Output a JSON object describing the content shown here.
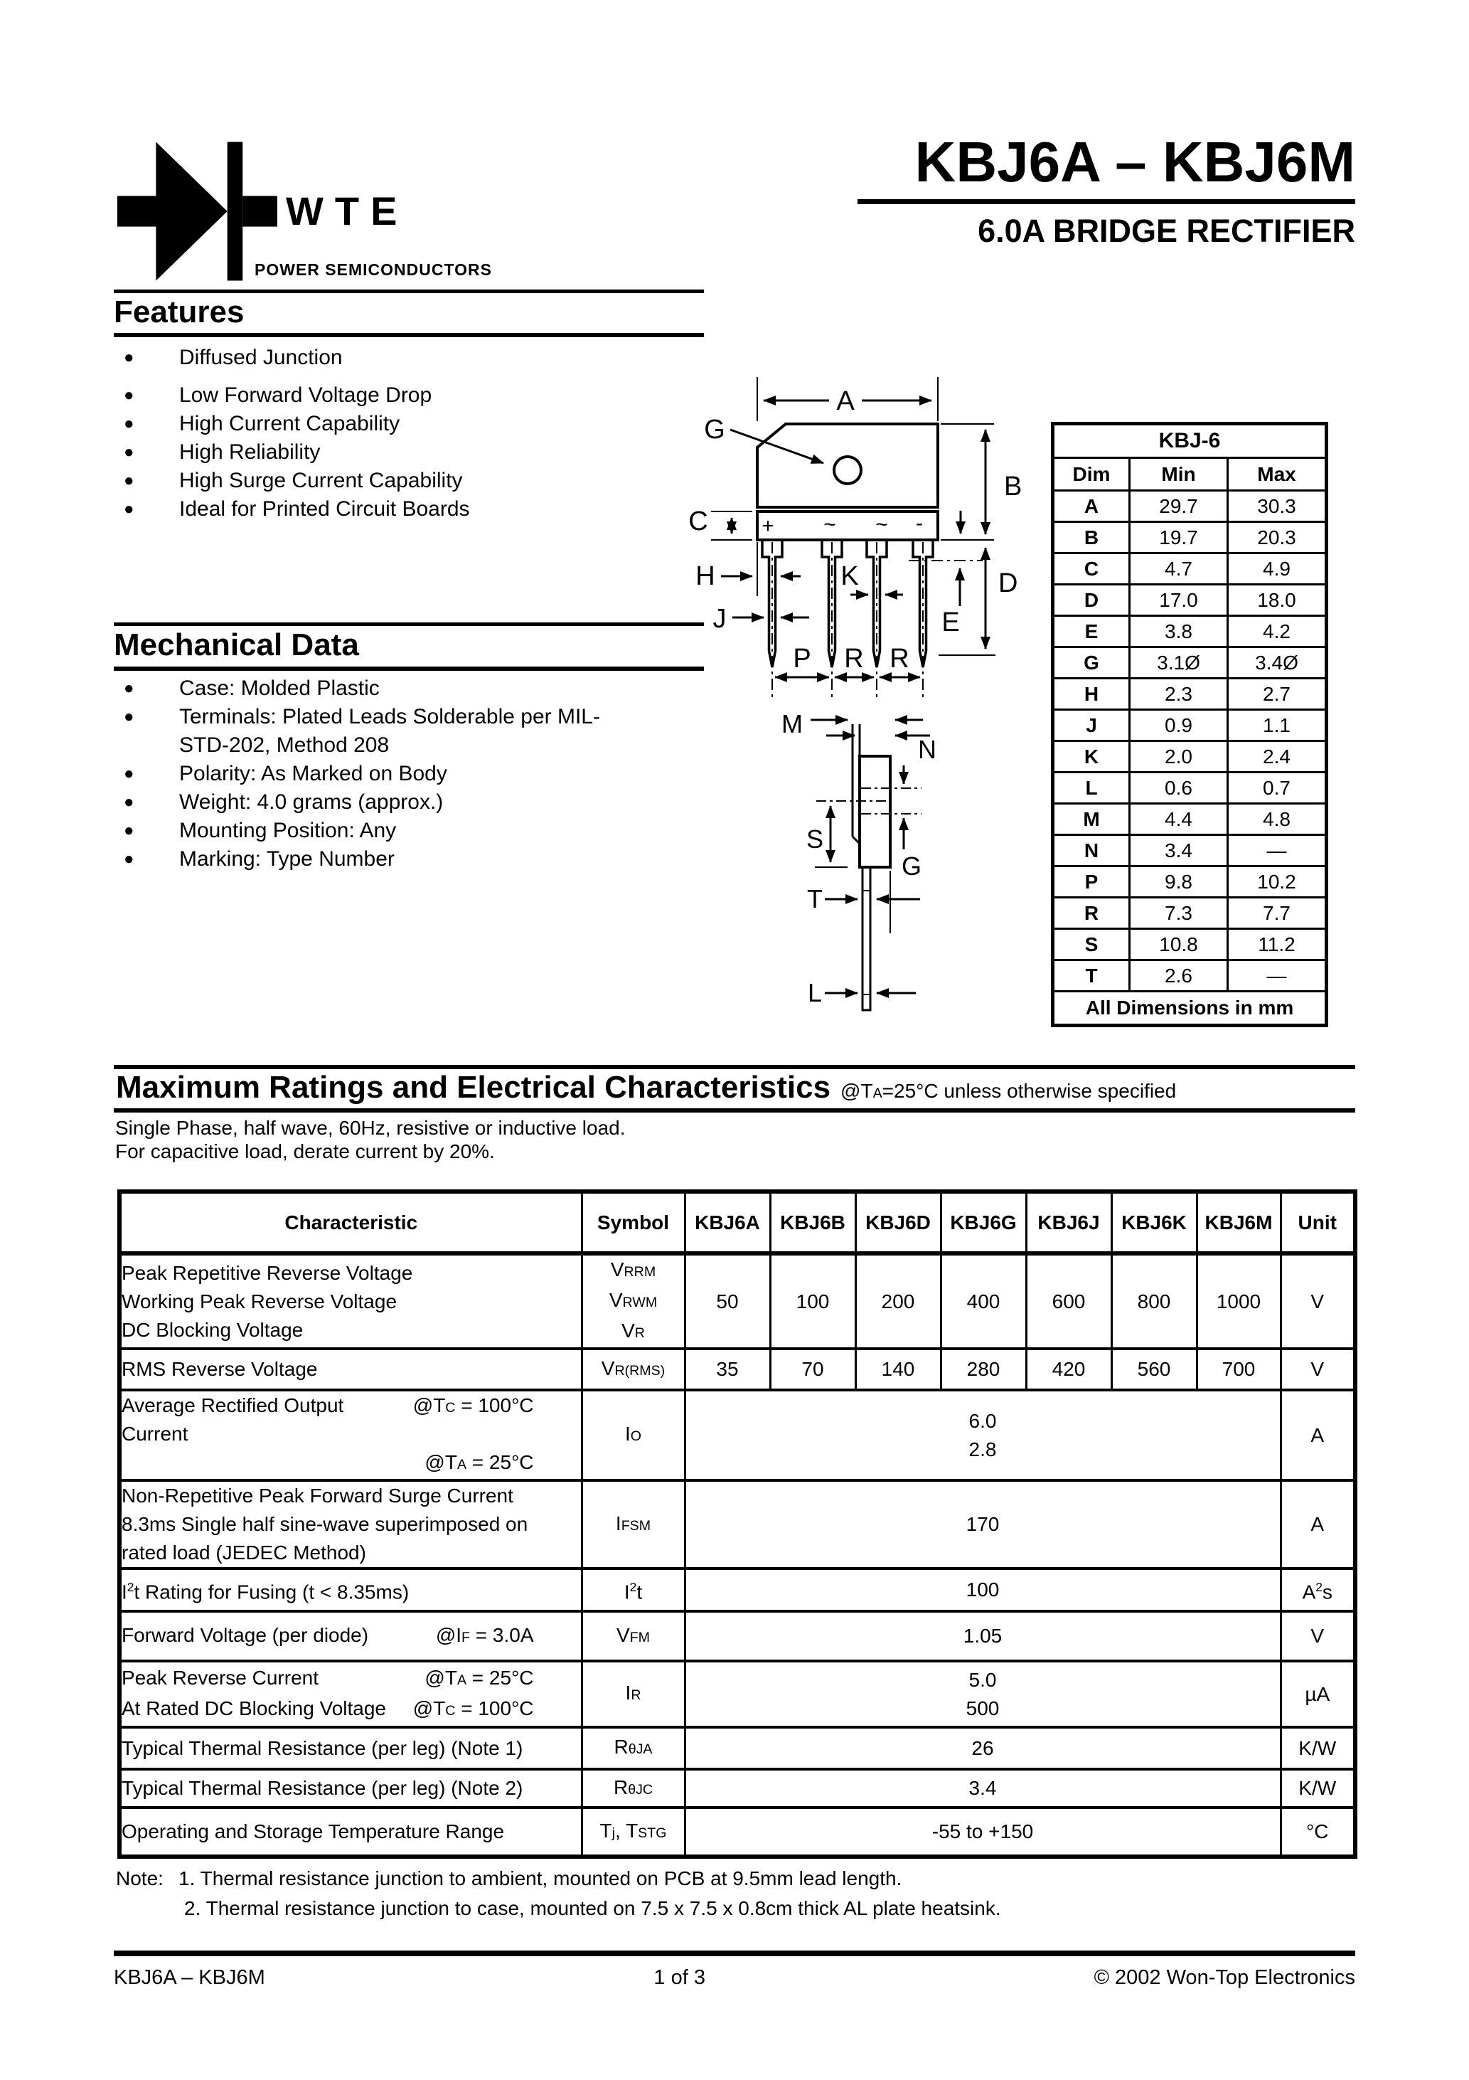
{
  "header": {
    "brand": "WTE",
    "brand_tagline": "POWER SEMICONDUCTORS",
    "title": "KBJ6A – KBJ6M",
    "subtitle": "6.0A BRIDGE RECTIFIER"
  },
  "features": {
    "heading": "Features",
    "items": [
      "Diffused Junction",
      "Low Forward Voltage Drop",
      "High Current Capability",
      "High Reliability",
      "High Surge Current Capability",
      "Ideal for Printed Circuit Boards"
    ]
  },
  "mechanical": {
    "heading": "Mechanical Data",
    "items": [
      "Case: Molded Plastic",
      "Terminals: Plated Leads Solderable per MIL-STD-202, Method 208",
      "Polarity: As Marked on Body",
      "Weight: 4.0 grams (approx.)",
      "Mounting Position: Any",
      "Marking: Type Number"
    ]
  },
  "package_diagram": {
    "front_labels": {
      "A": "A",
      "B": "B",
      "C": "C",
      "D": "D",
      "E": "E",
      "G": "G",
      "H": "H",
      "J": "J",
      "K": "K",
      "P": "P",
      "R1": "R",
      "R2": "R"
    },
    "side_labels": {
      "M": "M",
      "N": "N",
      "S": "S",
      "G": "G",
      "T": "T",
      "L": "L"
    },
    "polarity_marks": [
      "+",
      "~",
      "~",
      "-"
    ]
  },
  "dim_table": {
    "title": "KBJ-6",
    "columns": [
      "Dim",
      "Min",
      "Max"
    ],
    "rows": [
      [
        "A",
        "29.7",
        "30.3"
      ],
      [
        "B",
        "19.7",
        "20.3"
      ],
      [
        "C",
        "4.7",
        "4.9"
      ],
      [
        "D",
        "17.0",
        "18.0"
      ],
      [
        "E",
        "3.8",
        "4.2"
      ],
      [
        "G",
        "3.1Ø",
        "3.4Ø"
      ],
      [
        "H",
        "2.3",
        "2.7"
      ],
      [
        "J",
        "0.9",
        "1.1"
      ],
      [
        "K",
        "2.0",
        "2.4"
      ],
      [
        "L",
        "0.6",
        "0.7"
      ],
      [
        "M",
        "4.4",
        "4.8"
      ],
      [
        "N",
        "3.4",
        "—"
      ],
      [
        "P",
        "9.8",
        "10.2"
      ],
      [
        "R",
        "7.3",
        "7.7"
      ],
      [
        "S",
        "10.8",
        "11.2"
      ],
      [
        "T",
        "2.6",
        "—"
      ]
    ],
    "footer": "All Dimensions in mm"
  },
  "ratings": {
    "heading": "Maximum Ratings and Electrical Characteristics",
    "heading_note": "@T~A~=25°C unless otherwise specified",
    "conditions": [
      "Single Phase, half wave, 60Hz, resistive or inductive load.",
      "For capacitive load, derate current by 20%."
    ],
    "table": {
      "headers": [
        "Characteristic",
        "Symbol",
        "KBJ6A",
        "KBJ6B",
        "KBJ6D",
        "KBJ6G",
        "KBJ6J",
        "KBJ6K",
        "KBJ6M",
        "Unit"
      ],
      "rows": [
        {
          "characteristic": [
            {
              "l": "Peak Repetitive Reverse Voltage"
            },
            {
              "l": "Working Peak Reverse Voltage"
            },
            {
              "l": "DC Blocking Voltage"
            }
          ],
          "symbol": [
            "V~RRM~",
            "V~RWM~",
            "V~R~"
          ],
          "values": [
            "50",
            "100",
            "200",
            "400",
            "600",
            "800",
            "1000"
          ],
          "unit": "V"
        },
        {
          "characteristic": [
            {
              "l": "RMS Reverse Voltage"
            }
          ],
          "symbol": [
            "V~R(RMS)~"
          ],
          "values": [
            "35",
            "70",
            "140",
            "280",
            "420",
            "560",
            "700"
          ],
          "unit": "V"
        },
        {
          "characteristic": [
            {
              "l": "Average Rectified Output Current",
              "r": "@T~C~ = 100°C"
            },
            {
              "l": "",
              "r": "@T~A~ = 25°C"
            }
          ],
          "symbol": [
            "I~O~"
          ],
          "span": [
            "6.0",
            "2.8"
          ],
          "unit": "A"
        },
        {
          "characteristic": [
            {
              "l": "Non-Repetitive Peak Forward Surge Current"
            },
            {
              "l": "8.3ms Single half sine-wave superimposed on"
            },
            {
              "l": "rated load (JEDEC Method)"
            }
          ],
          "symbol": [
            "I~FSM~"
          ],
          "span": [
            "170"
          ],
          "unit": "A"
        },
        {
          "characteristic": [
            {
              "l": "I^2^t Rating for Fusing (t < 8.35ms)"
            }
          ],
          "symbol": [
            "I^2^t"
          ],
          "span": [
            "100"
          ],
          "unit": "A^2^s"
        },
        {
          "characteristic": [
            {
              "l": "Forward Voltage (per diode)",
              "r": "@I~F~ = 3.0A"
            }
          ],
          "symbol": [
            "V~FM~"
          ],
          "span": [
            "1.05"
          ],
          "unit": "V"
        },
        {
          "characteristic": [
            {
              "l": "Peak Reverse Current",
              "r": "@T~A~ = 25°C"
            },
            {
              "l": "At Rated DC Blocking Voltage",
              "r": "@T~C~ = 100°C"
            }
          ],
          "symbol": [
            "I~R~"
          ],
          "span": [
            "5.0",
            "500"
          ],
          "unit": "µA"
        },
        {
          "characteristic": [
            {
              "l": "Typical Thermal Resistance (per leg) (Note 1)"
            }
          ],
          "symbol": [
            "R~θJA~"
          ],
          "span": [
            "26"
          ],
          "unit": "K/W"
        },
        {
          "characteristic": [
            {
              "l": "Typical Thermal Resistance (per leg) (Note 2)"
            }
          ],
          "symbol": [
            "R~θJC~"
          ],
          "span": [
            "3.4"
          ],
          "unit": "K/W"
        },
        {
          "characteristic": [
            {
              "l": "Operating and Storage Temperature Range"
            }
          ],
          "symbol": [
            "T~j~, T~STG~"
          ],
          "span": [
            "-55 to +150"
          ],
          "unit": "°C"
        }
      ]
    }
  },
  "notes": {
    "label": "Note:",
    "items": [
      "1. Thermal resistance junction to ambient, mounted on PCB at 9.5mm lead length.",
      "2. Thermal resistance junction to case, mounted on 7.5 x 7.5 x 0.8cm thick AL plate heatsink."
    ]
  },
  "footer": {
    "left": "KBJ6A – KBJ6M",
    "center": "1 of 3",
    "right": "© 2002 Won-Top Electronics"
  }
}
